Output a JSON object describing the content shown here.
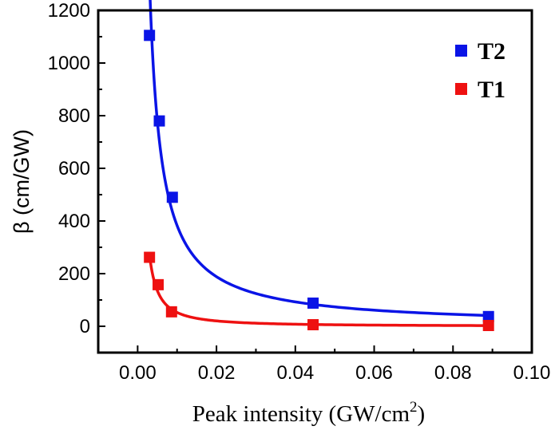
{
  "chart_data": {
    "type": "scatter",
    "title": "",
    "xlabel": "Peak intensity (GW/cm",
    "xlabel_sup": "2",
    "xlabel_end": ")",
    "ylabel": "β (cm/GW)",
    "xlim": [
      -0.01,
      0.1
    ],
    "ylim": [
      -100,
      1200
    ],
    "xticks": [
      0.0,
      0.02,
      0.04,
      0.06,
      0.08,
      0.1
    ],
    "xtick_labels": [
      "0.00",
      "0.02",
      "0.04",
      "0.06",
      "0.08",
      "0.10"
    ],
    "yticks": [
      0,
      200,
      400,
      600,
      800,
      1000,
      1200
    ],
    "ytick_labels": [
      "0",
      "200",
      "400",
      "600",
      "800",
      "1000",
      "1200"
    ],
    "legend_position": "top-right",
    "series": [
      {
        "name": "T2",
        "color": "#0a14e6",
        "marker": "square",
        "fit": "power-law",
        "x": [
          0.003,
          0.0055,
          0.0088,
          0.0445,
          0.089
        ],
        "y": [
          1105,
          780,
          490,
          88,
          37
        ]
      },
      {
        "name": "T1",
        "color": "#ee1111",
        "marker": "square",
        "fit": "power-law",
        "x": [
          0.003,
          0.0052,
          0.0086,
          0.0445,
          0.089
        ],
        "y": [
          262,
          158,
          55,
          6,
          3
        ]
      }
    ]
  }
}
